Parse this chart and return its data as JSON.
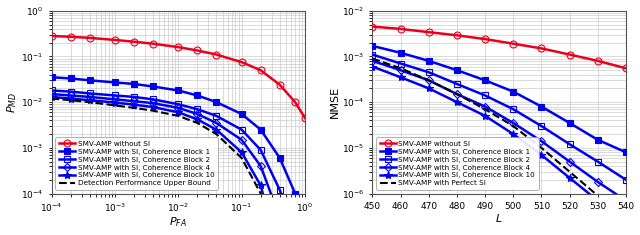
{
  "left": {
    "xlabel": "$P_{FA}$",
    "ylabel": "$P_{MD}$",
    "series": [
      {
        "label": "SMV-AMP without SI",
        "color": "#e8001e",
        "marker": "o",
        "fillstyle": "none",
        "linestyle": "-",
        "linewidth": 1.8,
        "markersize": 5,
        "x": [
          0.0001,
          0.0002,
          0.0004,
          0.001,
          0.002,
          0.004,
          0.01,
          0.02,
          0.04,
          0.1,
          0.2,
          0.4,
          0.7,
          1.0
        ],
        "y": [
          0.28,
          0.27,
          0.255,
          0.23,
          0.21,
          0.19,
          0.16,
          0.135,
          0.11,
          0.075,
          0.05,
          0.024,
          0.01,
          0.0045
        ]
      },
      {
        "label": "SMV-AMP with SI, Coherence Block 1",
        "color": "#0000ee",
        "marker": "s",
        "fillstyle": "full",
        "linestyle": "-",
        "linewidth": 1.8,
        "markersize": 4,
        "x": [
          0.0001,
          0.0002,
          0.0004,
          0.001,
          0.002,
          0.004,
          0.01,
          0.02,
          0.04,
          0.1,
          0.2,
          0.4,
          0.7,
          1.0
        ],
        "y": [
          0.035,
          0.033,
          0.03,
          0.027,
          0.025,
          0.022,
          0.018,
          0.014,
          0.01,
          0.0055,
          0.0025,
          0.0006,
          0.0001,
          1.5e-05
        ]
      },
      {
        "label": "SMV-AMP with SI, Coherence Block 2",
        "color": "#0000ee",
        "marker": "s",
        "fillstyle": "none",
        "linestyle": "-",
        "linewidth": 1.8,
        "markersize": 4,
        "x": [
          0.0001,
          0.0002,
          0.0004,
          0.001,
          0.002,
          0.004,
          0.01,
          0.02,
          0.04,
          0.1,
          0.2,
          0.4,
          0.7,
          1.0
        ],
        "y": [
          0.018,
          0.017,
          0.0155,
          0.014,
          0.013,
          0.0115,
          0.009,
          0.007,
          0.005,
          0.0025,
          0.0009,
          0.00012,
          1.2e-05,
          8e-07
        ]
      },
      {
        "label": "SMV-AMP with SI, Coherence Block 4",
        "color": "#0000ee",
        "marker": "D",
        "fillstyle": "none",
        "linestyle": "-",
        "linewidth": 1.8,
        "markersize": 4,
        "x": [
          0.0001,
          0.0002,
          0.0004,
          0.001,
          0.002,
          0.004,
          0.01,
          0.02,
          0.04,
          0.1,
          0.2,
          0.4,
          0.7,
          1.0
        ],
        "y": [
          0.015,
          0.014,
          0.013,
          0.0115,
          0.0105,
          0.0095,
          0.0075,
          0.0055,
          0.0035,
          0.0015,
          0.0004,
          3e-05,
          2e-06,
          5e-08
        ]
      },
      {
        "label": "SMV-AMP with SI, Coherence Block 10",
        "color": "#0000ee",
        "marker": "*",
        "fillstyle": "full",
        "linestyle": "-",
        "linewidth": 1.8,
        "markersize": 6,
        "x": [
          0.0001,
          0.0002,
          0.0004,
          0.001,
          0.002,
          0.004,
          0.01,
          0.02,
          0.04,
          0.1,
          0.2,
          0.4,
          0.7,
          1.0
        ],
        "y": [
          0.013,
          0.012,
          0.011,
          0.0098,
          0.0088,
          0.0078,
          0.006,
          0.0042,
          0.0025,
          0.0008,
          0.00015,
          4e-06,
          2e-07,
          1e-08
        ]
      },
      {
        "label": "Detection Performance Upper Bound",
        "color": "#000000",
        "marker": "none",
        "fillstyle": "none",
        "linestyle": "--",
        "linewidth": 1.5,
        "markersize": 0,
        "x": [
          0.0001,
          0.0002,
          0.0004,
          0.001,
          0.002,
          0.004,
          0.01,
          0.02,
          0.04,
          0.1,
          0.2,
          0.4,
          0.7,
          1.0
        ],
        "y": [
          0.012,
          0.011,
          0.01,
          0.0085,
          0.0075,
          0.0065,
          0.005,
          0.0035,
          0.002,
          0.0006,
          0.0001,
          5e-06,
          1e-07,
          5e-09
        ]
      }
    ]
  },
  "right": {
    "xlabel": "$L$",
    "ylabel": "NMSE",
    "xlim": [
      450,
      540
    ],
    "xticks": [
      450,
      460,
      470,
      480,
      490,
      500,
      510,
      520,
      530,
      540
    ],
    "series": [
      {
        "label": "SMV-AMP without SI",
        "color": "#e8001e",
        "marker": "o",
        "fillstyle": "none",
        "linestyle": "-",
        "linewidth": 1.8,
        "markersize": 5,
        "x": [
          450,
          460,
          470,
          480,
          490,
          500,
          510,
          520,
          530,
          540
        ],
        "y": [
          0.0045,
          0.004,
          0.0034,
          0.0029,
          0.0024,
          0.0019,
          0.0015,
          0.0011,
          0.0008,
          0.00055
        ]
      },
      {
        "label": "SMV-AMP with SI, Coherence Block 1",
        "color": "#0000ee",
        "marker": "s",
        "fillstyle": "full",
        "linestyle": "-",
        "linewidth": 1.8,
        "markersize": 4,
        "x": [
          450,
          460,
          470,
          480,
          490,
          500,
          510,
          520,
          530,
          540
        ],
        "y": [
          0.0017,
          0.0012,
          0.0008,
          0.0005,
          0.0003,
          0.00017,
          8e-05,
          3.5e-05,
          1.5e-05,
          8e-06
        ]
      },
      {
        "label": "SMV-AMP with SI, Coherence Block 2",
        "color": "#0000ee",
        "marker": "s",
        "fillstyle": "none",
        "linestyle": "-",
        "linewidth": 1.8,
        "markersize": 4,
        "x": [
          450,
          460,
          470,
          480,
          490,
          500,
          510,
          520,
          530,
          540
        ],
        "y": [
          0.0011,
          0.0007,
          0.00045,
          0.00025,
          0.00014,
          7e-05,
          3e-05,
          1.2e-05,
          5e-06,
          2e-06
        ]
      },
      {
        "label": "SMV-AMP with SI, Coherence Block 4",
        "color": "#0000ee",
        "marker": "D",
        "fillstyle": "none",
        "linestyle": "-",
        "linewidth": 1.8,
        "markersize": 4,
        "x": [
          450,
          460,
          470,
          480,
          490,
          500,
          510,
          520,
          530,
          540
        ],
        "y": [
          0.0008,
          0.0005,
          0.0003,
          0.00015,
          8e-05,
          3.5e-05,
          1.4e-05,
          5e-06,
          1.8e-06,
          7e-07
        ]
      },
      {
        "label": "SMV-AMP with SI, Coherence Block 10",
        "color": "#0000ee",
        "marker": "*",
        "fillstyle": "full",
        "linestyle": "-",
        "linewidth": 1.8,
        "markersize": 6,
        "x": [
          450,
          460,
          470,
          480,
          490,
          500,
          510,
          520,
          530,
          540
        ],
        "y": [
          0.0006,
          0.00035,
          0.0002,
          0.0001,
          5e-05,
          2e-05,
          7e-06,
          2.2e-06,
          7e-07,
          2e-07
        ]
      },
      {
        "label": "SMV-AMP with Perfect SI",
        "color": "#000000",
        "marker": "none",
        "fillstyle": "none",
        "linestyle": "--",
        "linewidth": 1.5,
        "markersize": 0,
        "x": [
          450,
          460,
          470,
          480,
          490,
          500,
          510,
          520,
          530,
          540
        ],
        "y": [
          0.0009,
          0.00055,
          0.0003,
          0.00015,
          7e-05,
          3e-05,
          1e-05,
          3e-06,
          9e-07,
          2.5e-07
        ]
      }
    ]
  },
  "fig_bg": "#ffffff",
  "ax_bg": "#ffffff",
  "grid_color": "#cccccc",
  "grid_linewidth": 0.5,
  "legend_fontsize": 5.2,
  "tick_fontsize": 6.5,
  "label_fontsize": 8.0,
  "spine_color": "#555555"
}
